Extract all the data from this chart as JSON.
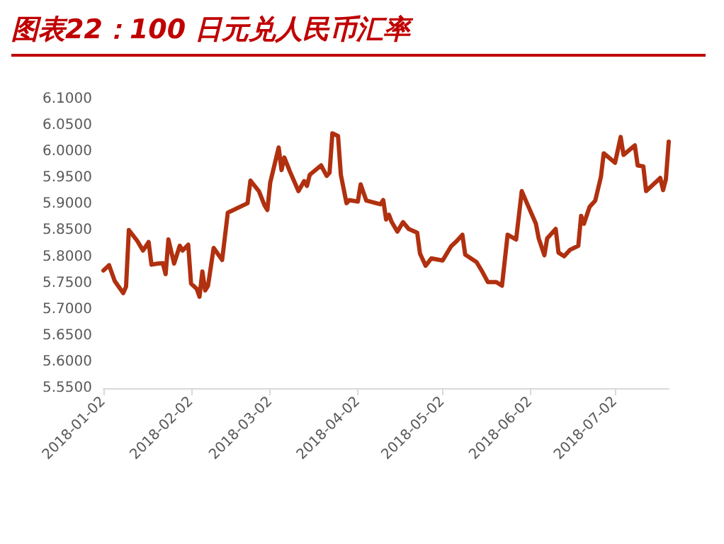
{
  "chart_data": {
    "type": "line",
    "title": "图表22：100 日元兑人民币汇率",
    "x": [
      "2018-01-02",
      "2018-01-04",
      "2018-01-06",
      "2018-01-09",
      "2018-01-10",
      "2018-01-11",
      "2018-01-14",
      "2018-01-16",
      "2018-01-18",
      "2018-01-19",
      "2018-01-21",
      "2018-01-23",
      "2018-01-24",
      "2018-01-25",
      "2018-01-27",
      "2018-01-29",
      "2018-01-30",
      "2018-02-01",
      "2018-02-02",
      "2018-02-04",
      "2018-02-05",
      "2018-02-06",
      "2018-02-07",
      "2018-02-08",
      "2018-02-10",
      "2018-02-13",
      "2018-02-15",
      "2018-02-22",
      "2018-02-23",
      "2018-02-26",
      "2018-02-28",
      "2018-03-01",
      "2018-03-02",
      "2018-03-05",
      "2018-03-06",
      "2018-03-07",
      "2018-03-09",
      "2018-03-12",
      "2018-03-14",
      "2018-03-15",
      "2018-03-16",
      "2018-03-20",
      "2018-03-22",
      "2018-03-23",
      "2018-03-24",
      "2018-03-26",
      "2018-03-27",
      "2018-03-29",
      "2018-03-30",
      "2018-04-02",
      "2018-04-03",
      "2018-04-05",
      "2018-04-10",
      "2018-04-11",
      "2018-04-12",
      "2018-04-13",
      "2018-04-14",
      "2018-04-16",
      "2018-04-18",
      "2018-04-20",
      "2018-04-23",
      "2018-04-24",
      "2018-04-26",
      "2018-04-28",
      "2018-05-02",
      "2018-05-05",
      "2018-05-07",
      "2018-05-09",
      "2018-05-10",
      "2018-05-14",
      "2018-05-16",
      "2018-05-18",
      "2018-05-21",
      "2018-05-23",
      "2018-05-25",
      "2018-05-28",
      "2018-05-30",
      "2018-06-01",
      "2018-06-04",
      "2018-06-05",
      "2018-06-07",
      "2018-06-08",
      "2018-06-11",
      "2018-06-12",
      "2018-06-14",
      "2018-06-16",
      "2018-06-19",
      "2018-06-20",
      "2018-06-21",
      "2018-06-23",
      "2018-06-25",
      "2018-06-27",
      "2018-06-28",
      "2018-07-02",
      "2018-07-04",
      "2018-07-05",
      "2018-07-09",
      "2018-07-10",
      "2018-07-12",
      "2018-07-13",
      "2018-07-18",
      "2018-07-19",
      "2018-07-20",
      "2018-07-21"
    ],
    "series": [
      {
        "color": "#b0300f",
        "values": [
          5.774,
          5.784,
          5.754,
          5.731,
          5.743,
          5.851,
          5.83,
          5.812,
          5.828,
          5.785,
          5.787,
          5.788,
          5.767,
          5.833,
          5.787,
          5.821,
          5.812,
          5.823,
          5.749,
          5.739,
          5.724,
          5.772,
          5.736,
          5.745,
          5.817,
          5.794,
          5.884,
          5.902,
          5.945,
          5.925,
          5.898,
          5.889,
          5.941,
          6.008,
          5.965,
          5.989,
          5.962,
          5.925,
          5.944,
          5.935,
          5.956,
          5.974,
          5.954,
          5.96,
          6.035,
          6.03,
          5.956,
          5.902,
          5.908,
          5.905,
          5.938,
          5.907,
          5.9,
          5.908,
          5.871,
          5.88,
          5.866,
          5.848,
          5.866,
          5.853,
          5.846,
          5.806,
          5.783,
          5.797,
          5.793,
          5.82,
          5.83,
          5.842,
          5.804,
          5.79,
          5.772,
          5.752,
          5.752,
          5.745,
          5.842,
          5.833,
          5.925,
          5.9,
          5.863,
          5.835,
          5.803,
          5.835,
          5.853,
          5.808,
          5.801,
          5.813,
          5.821,
          5.878,
          5.863,
          5.895,
          5.907,
          5.952,
          5.997,
          5.979,
          6.028,
          5.994,
          6.012,
          5.974,
          5.972,
          5.925,
          5.95,
          5.927,
          5.948,
          6.019
        ]
      }
    ],
    "xlim": [
      "2018-01-02",
      "2018-07-21"
    ],
    "xticks": [
      "2018-01-02",
      "2018-02-02",
      "2018-03-02",
      "2018-04-02",
      "2018-05-02",
      "2018-06-02",
      "2018-07-02"
    ],
    "ylim": [
      5.55,
      6.1
    ],
    "yticks": [
      {
        "value": 5.55,
        "label": "5.5500"
      },
      {
        "value": 5.6,
        "label": "5.6000"
      },
      {
        "value": 5.65,
        "label": "5.6500"
      },
      {
        "value": 5.7,
        "label": "5.7000"
      },
      {
        "value": 5.75,
        "label": "5.7500"
      },
      {
        "value": 5.8,
        "label": "5.8000"
      },
      {
        "value": 5.85,
        "label": "5.8500"
      },
      {
        "value": 5.9,
        "label": "5.9000"
      },
      {
        "value": 5.95,
        "label": "5.9500"
      },
      {
        "value": 6.0,
        "label": "6.0000"
      },
      {
        "value": 6.05,
        "label": "6.0500"
      },
      {
        "value": 6.1,
        "label": "6.1000"
      }
    ],
    "grid": false,
    "marker": "none",
    "line_style": "solid"
  }
}
